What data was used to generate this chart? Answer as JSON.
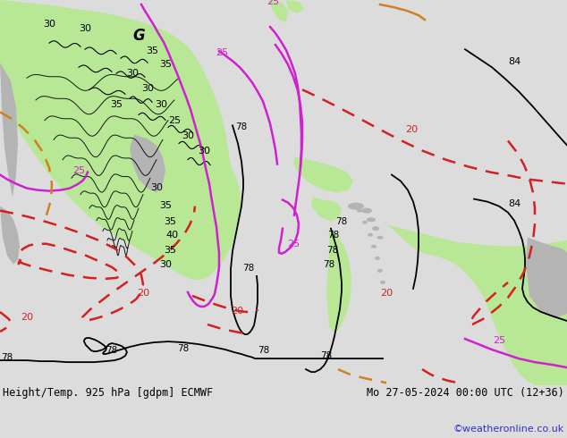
{
  "title_left": "Height/Temp. 925 hPa [gdpm] ECMWF",
  "title_right": "Mo 27-05-2024 00:00 UTC (12+36)",
  "credit": "©weatheronline.co.uk",
  "bg_color": "#dcdcdc",
  "land_green_color": "#b8e896",
  "land_gray_color": "#b4b4b4",
  "contour_black_color": "#000000",
  "contour_red_color": "#d42020",
  "contour_magenta_color": "#d020d0",
  "contour_orange_color": "#d08020",
  "title_font_size": 8.5,
  "credit_font_size": 8,
  "credit_color": "#3030cc",
  "fig_width": 6.34,
  "fig_height": 4.9,
  "dpi": 100
}
